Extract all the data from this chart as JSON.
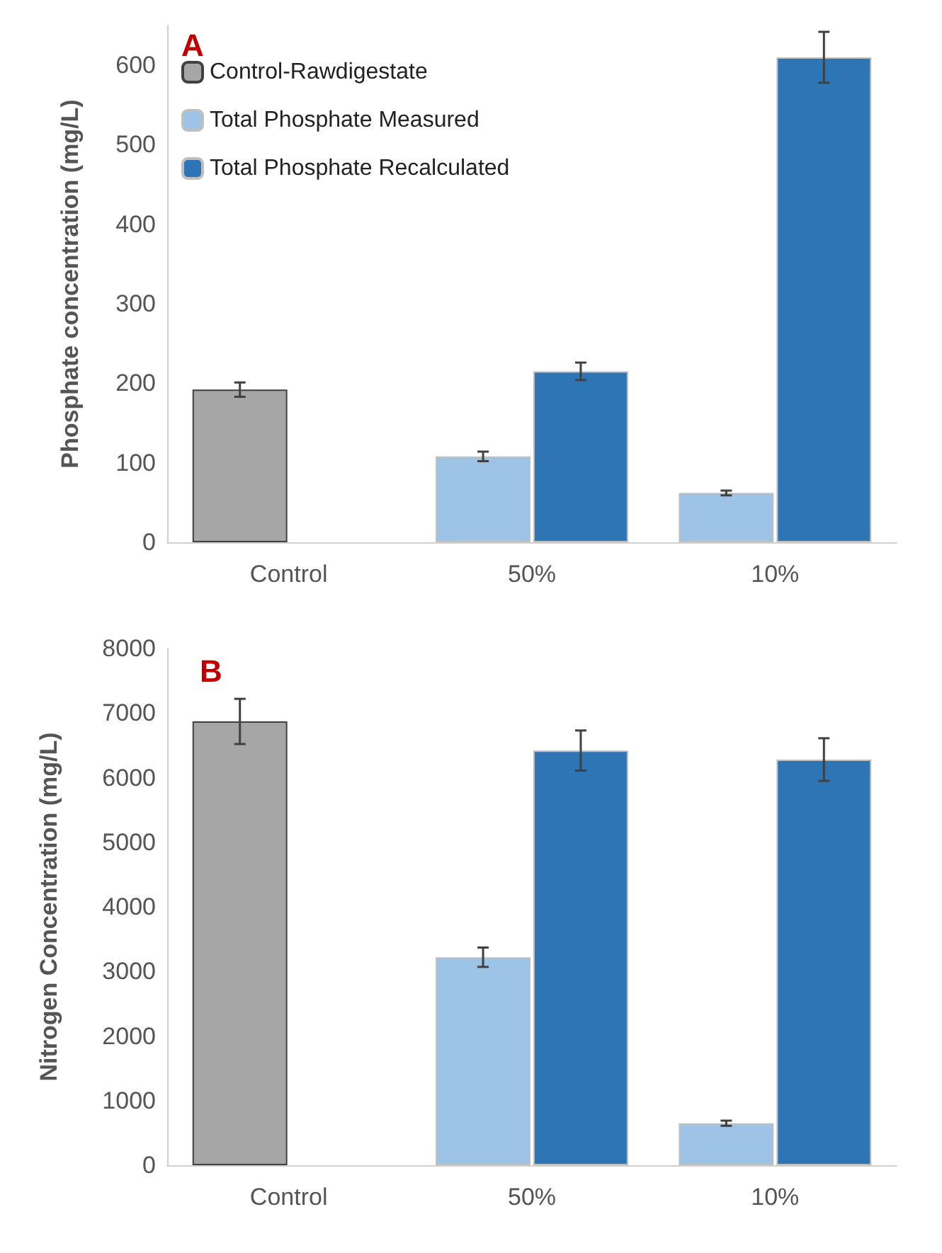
{
  "chart_data": [
    {
      "type": "bar",
      "title": "A",
      "ylabel": "Phosphate concentration (mg/L)",
      "categories": [
        "Control",
        "50%",
        "10%"
      ],
      "ylim": [
        0,
        650
      ],
      "yticks": [
        0,
        100,
        200,
        300,
        400,
        500,
        600
      ],
      "grid": false,
      "legend": "top left",
      "series": [
        {
          "name": "Control-Rawdigestate",
          "color": "#a6a6a6",
          "values": [
            192,
            null,
            null
          ],
          "errors": [
            9,
            null,
            null
          ]
        },
        {
          "name": "Total Phosphate Measured",
          "color": "#9dc3e6",
          "values": [
            null,
            108,
            62
          ],
          "errors": [
            null,
            6,
            3
          ]
        },
        {
          "name": "Total Phosphate Recalculated",
          "color": "#2e75b6",
          "values": [
            null,
            215,
            610
          ],
          "errors": [
            null,
            11,
            32
          ]
        }
      ]
    },
    {
      "type": "bar",
      "title": "B",
      "ylabel": "Nitrogen Concentration (mg/L)",
      "categories": [
        "Control",
        "50%",
        "10%"
      ],
      "ylim": [
        0,
        8000
      ],
      "yticks": [
        0,
        1000,
        2000,
        3000,
        4000,
        5000,
        6000,
        7000,
        8000
      ],
      "grid": false,
      "legend": false,
      "series": [
        {
          "color": "#a6a6a6",
          "values": [
            6870,
            null,
            null
          ],
          "errors": [
            350,
            null,
            null
          ]
        },
        {
          "color": "#9dc3e6",
          "values": [
            null,
            3220,
            650
          ],
          "errors": [
            null,
            150,
            40
          ]
        },
        {
          "color": "#2e75b6",
          "values": [
            null,
            6420,
            6280
          ],
          "errors": [
            null,
            310,
            330
          ]
        }
      ]
    }
  ]
}
